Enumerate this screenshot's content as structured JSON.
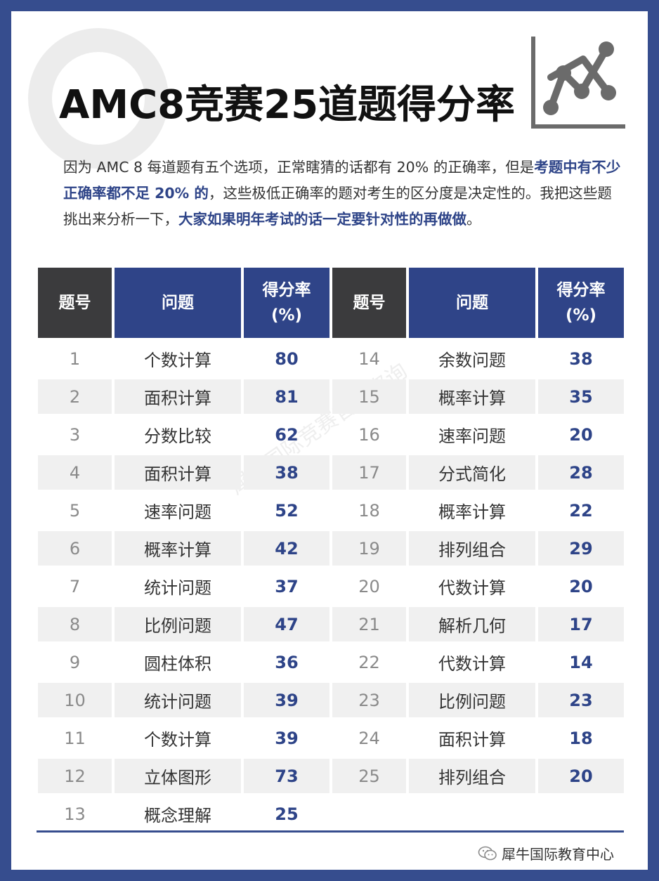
{
  "title": "AMC8竞赛25道题得分率",
  "intro": {
    "p1": "因为 AMC 8 每道题有五个选项，正常瞎猜的话都有 20% 的正确率，但是",
    "p2": "考题中有不少正确率都不足 20% 的",
    "p3": "，这些极低正确率的题对考生的区分度是决定性的。我把这些题挑出来分析一下，",
    "p4": "大家如果明年考试的话一定要针对性的再做做",
    "p5": "。"
  },
  "table": {
    "headers": {
      "num": "题号",
      "question": "问题",
      "rate_line1": "得分率",
      "rate_line2": "(%)"
    },
    "rows": [
      {
        "l_num": "1",
        "l_q": "个数计算",
        "l_rate": "80",
        "r_num": "14",
        "r_q": "余数问题",
        "r_rate": "38"
      },
      {
        "l_num": "2",
        "l_q": "面积计算",
        "l_rate": "81",
        "r_num": "15",
        "r_q": "概率计算",
        "r_rate": "35"
      },
      {
        "l_num": "3",
        "l_q": "分数比较",
        "l_rate": "62",
        "r_num": "16",
        "r_q": "速率问题",
        "r_rate": "20"
      },
      {
        "l_num": "4",
        "l_q": "面积计算",
        "l_rate": "38",
        "r_num": "17",
        "r_q": "分式简化",
        "r_rate": "28"
      },
      {
        "l_num": "5",
        "l_q": "速率问题",
        "l_rate": "52",
        "r_num": "18",
        "r_q": "概率计算",
        "r_rate": "22"
      },
      {
        "l_num": "6",
        "l_q": "概率计算",
        "l_rate": "42",
        "r_num": "19",
        "r_q": "排列组合",
        "r_rate": "29"
      },
      {
        "l_num": "7",
        "l_q": "统计问题",
        "l_rate": "37",
        "r_num": "20",
        "r_q": "代数计算",
        "r_rate": "20"
      },
      {
        "l_num": "8",
        "l_q": "比例问题",
        "l_rate": "47",
        "r_num": "21",
        "r_q": "解析几何",
        "r_rate": "17"
      },
      {
        "l_num": "9",
        "l_q": "圆柱体积",
        "l_rate": "36",
        "r_num": "22",
        "r_q": "代数计算",
        "r_rate": "14"
      },
      {
        "l_num": "10",
        "l_q": "统计问题",
        "l_rate": "39",
        "r_num": "23",
        "r_q": "比例问题",
        "r_rate": "23"
      },
      {
        "l_num": "11",
        "l_q": "个数计算",
        "l_rate": "39",
        "r_num": "24",
        "r_q": "面积计算",
        "r_rate": "18"
      },
      {
        "l_num": "12",
        "l_q": "立体图形",
        "l_rate": "73",
        "r_num": "25",
        "r_q": "排列组合",
        "r_rate": "20"
      },
      {
        "l_num": "13",
        "l_q": "概念理解",
        "l_rate": "25",
        "r_num": "",
        "r_q": "",
        "r_rate": ""
      }
    ]
  },
  "watermark": "犀牛国际竞赛官方咨询",
  "footer": {
    "icon": "wechat-icon",
    "text": "犀牛国际教育中心"
  },
  "colors": {
    "accent": "#2f4488",
    "header_dark": "#3b3b3d",
    "frame": "#364d8e",
    "row_alt": "#f0f0f0"
  },
  "decor": {
    "chart_icon": "line-chart-icon"
  }
}
